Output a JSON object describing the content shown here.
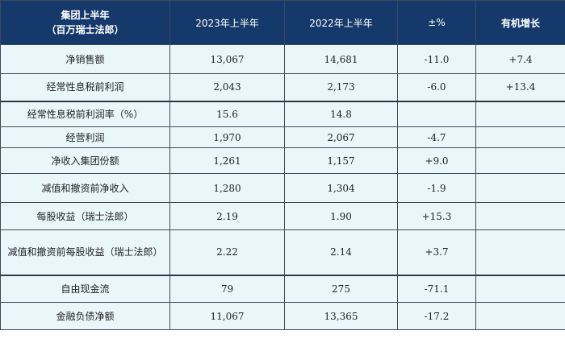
{
  "header": {
    "col0_line1": "集团上半年",
    "col0_line2": "（百万瑞士法郎）",
    "col1": "2023年上半年",
    "col2": "2022年上半年",
    "col3": "±%",
    "col4": "有机增长"
  },
  "rows": [
    {
      "label": "净销售额",
      "v2023": "13,067",
      "v2022": "14,681",
      "pct": "-11.0",
      "organic": "+7.4"
    },
    {
      "label": "经常性息税前利润",
      "v2023": "2,043",
      "v2022": "2,173",
      "pct": "-6.0",
      "organic": "+13.4"
    },
    {
      "label": "经常性息税前利润率（%）",
      "v2023": "15.6",
      "v2022": "14.8",
      "pct": "",
      "organic": ""
    },
    {
      "label": "经营利润",
      "v2023": "1,970",
      "v2022": "2,067",
      "pct": "-4.7",
      "organic": ""
    },
    {
      "label": "净收入集团份额",
      "v2023": "1,261",
      "v2022": "1,157",
      "pct": "+9.0",
      "organic": ""
    },
    {
      "label": "减值和撤资前净收入",
      "v2023": "1,280",
      "v2022": "1,304",
      "pct": "-1.9",
      "organic": ""
    },
    {
      "label": "每股收益（瑞士法郎）",
      "v2023": "2.19",
      "v2022": "1.90",
      "pct": "+15.3",
      "organic": ""
    },
    {
      "label": "减值和撤资前每股收益（瑞士法郎）",
      "v2023": "2.22",
      "v2022": "2.14",
      "pct": "+3.7",
      "organic": ""
    },
    {
      "label": "自由现金流",
      "v2023": "79",
      "v2022": "275",
      "pct": "-71.1",
      "organic": ""
    },
    {
      "label": "金融负债净额",
      "v2023": "11,067",
      "v2022": "13,365",
      "pct": "-17.2",
      "organic": ""
    }
  ]
}
